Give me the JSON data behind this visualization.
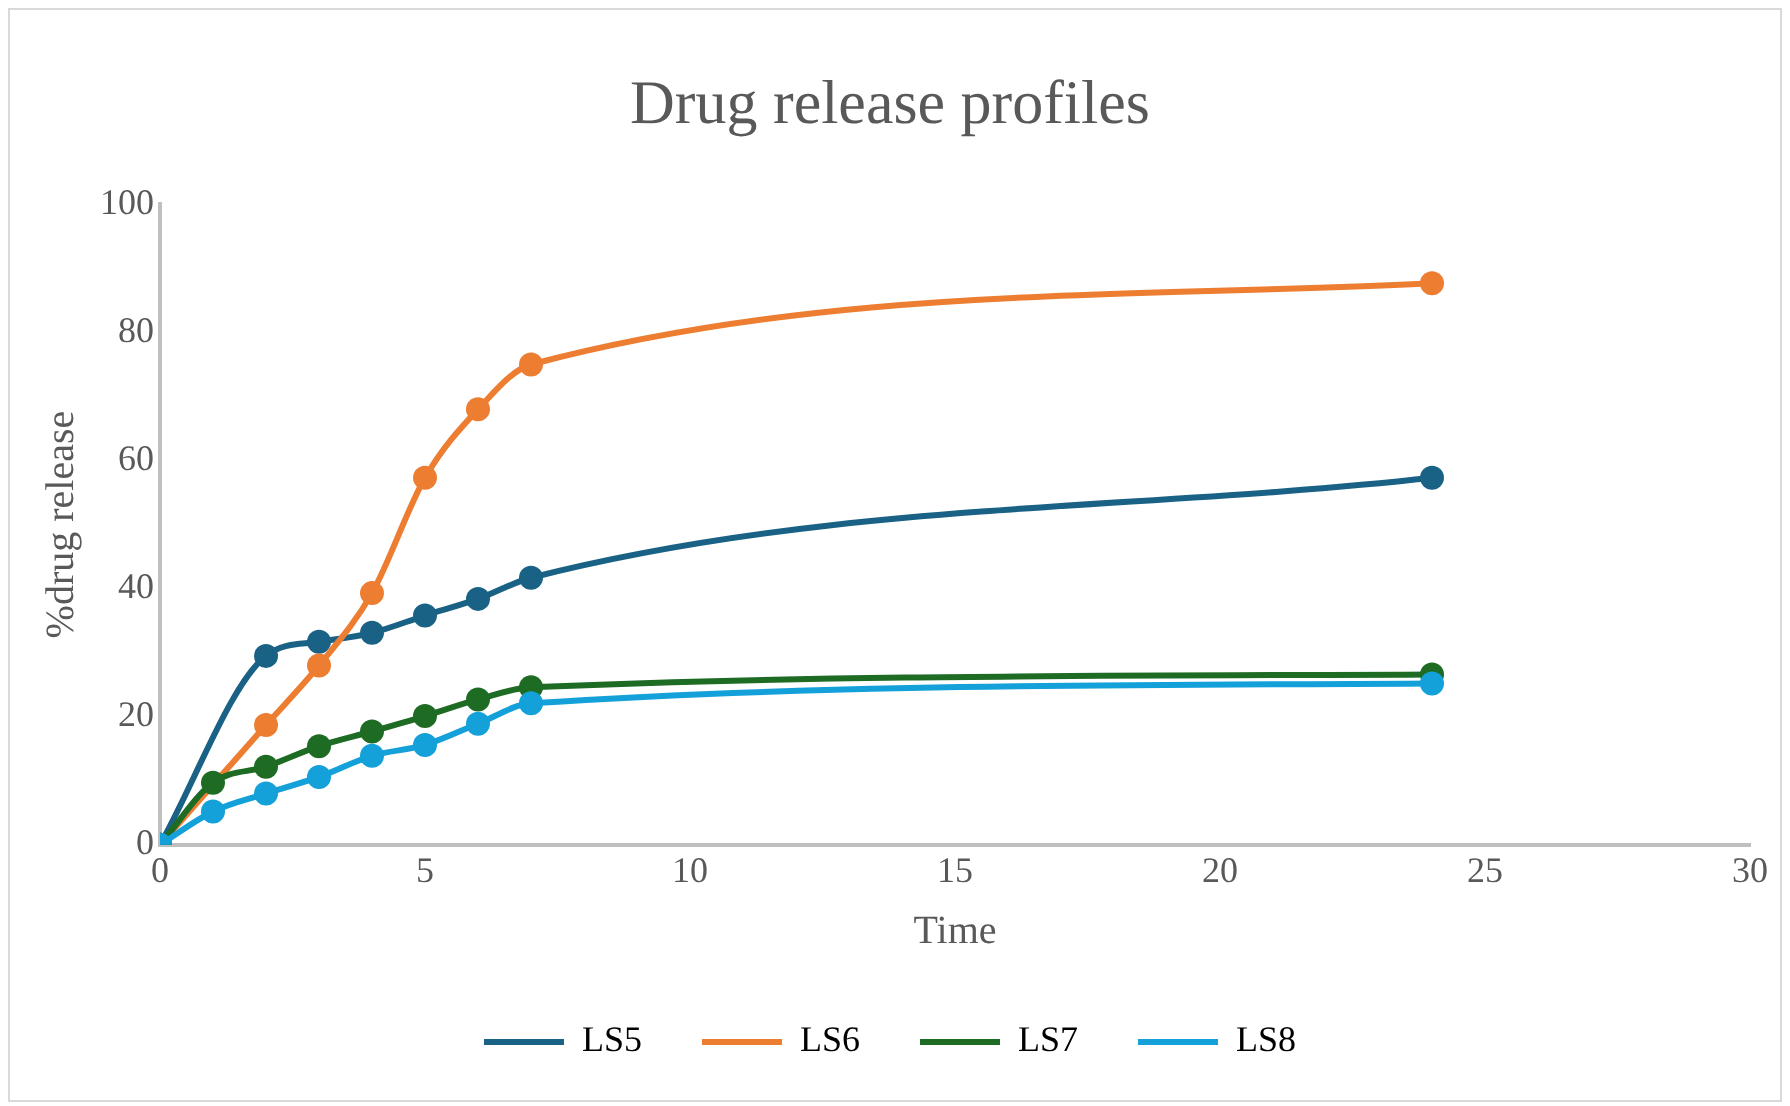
{
  "chart_data": {
    "type": "line",
    "title": "Drug release profiles",
    "xlabel": "Time",
    "ylabel": "%drug release",
    "x": [
      0,
      1,
      2,
      3,
      4,
      5,
      6,
      7,
      24
    ],
    "series": [
      {
        "name": "LS5",
        "color": "#1a6285",
        "values": [
          0,
          null,
          29.5,
          31.7,
          33.1,
          35.8,
          38.4,
          41.7,
          57.3
        ]
      },
      {
        "name": "LS6",
        "color": "#ed7d31",
        "values": [
          0,
          null,
          18.7,
          28,
          39.3,
          57.3,
          68,
          75,
          87.7
        ]
      },
      {
        "name": "LS7",
        "color": "#1e6b24",
        "values": [
          0,
          9.7,
          12.2,
          15.4,
          17.7,
          20.1,
          22.7,
          24.6,
          26.6
        ]
      },
      {
        "name": "LS8",
        "color": "#14a0d8",
        "values": [
          0,
          5.2,
          8,
          10.6,
          13.9,
          15.6,
          18.9,
          22.1,
          25.2
        ]
      }
    ],
    "xlim": [
      0,
      30
    ],
    "xticks": [
      0,
      5,
      10,
      15,
      20,
      25,
      30
    ],
    "ylim": [
      0,
      100
    ],
    "yticks": [
      0,
      20,
      40,
      60,
      80,
      100
    ],
    "grid": false,
    "legend": "bottom",
    "marker": "circle",
    "line_style": "solid"
  }
}
